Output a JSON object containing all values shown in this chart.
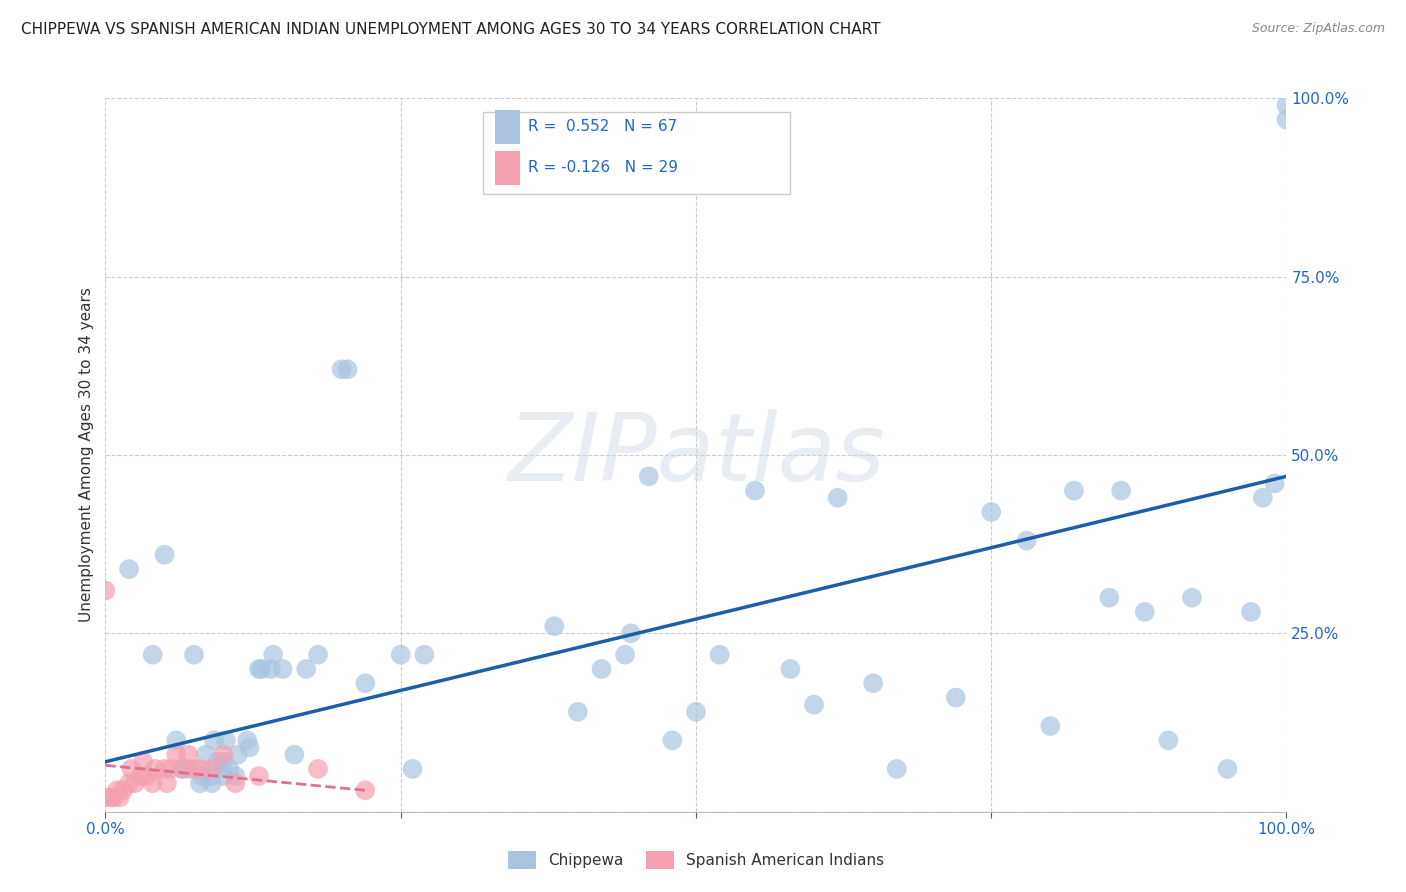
{
  "title": "CHIPPEWA VS SPANISH AMERICAN INDIAN UNEMPLOYMENT AMONG AGES 30 TO 34 YEARS CORRELATION CHART",
  "source": "Source: ZipAtlas.com",
  "ylabel": "Unemployment Among Ages 30 to 34 years",
  "xlim": [
    0.0,
    1.0
  ],
  "ylim": [
    0.0,
    1.0
  ],
  "xticks": [
    0.0,
    0.25,
    0.5,
    0.75,
    1.0
  ],
  "yticks": [
    0.0,
    0.25,
    0.5,
    0.75,
    1.0
  ],
  "xticklabels": [
    "0.0%",
    "",
    "",
    "",
    "100.0%"
  ],
  "yticklabels": [
    "",
    "25.0%",
    "50.0%",
    "75.0%",
    "100.0%"
  ],
  "chippewa_R": 0.552,
  "chippewa_N": 67,
  "spanish_R": -0.126,
  "spanish_N": 29,
  "chippewa_color": "#a8c4e0",
  "chippewa_line_color": "#1a5fa8",
  "spanish_color": "#f4a0b0",
  "spanish_line_color": "#e07090",
  "background_color": "#ffffff",
  "watermark_text": "ZIPatlas",
  "chippewa_x": [
    0.02,
    0.04,
    0.05,
    0.06,
    0.065,
    0.07,
    0.075,
    0.08,
    0.082,
    0.085,
    0.09,
    0.09,
    0.092,
    0.095,
    0.1,
    0.1,
    0.102,
    0.105,
    0.11,
    0.112,
    0.12,
    0.122,
    0.13,
    0.132,
    0.14,
    0.142,
    0.15,
    0.16,
    0.17,
    0.18,
    0.2,
    0.205,
    0.22,
    0.25,
    0.26,
    0.27,
    0.38,
    0.4,
    0.42,
    0.44,
    0.445,
    0.46,
    0.48,
    0.5,
    0.52,
    0.55,
    0.58,
    0.6,
    0.62,
    0.65,
    0.67,
    0.72,
    0.75,
    0.78,
    0.8,
    0.82,
    0.85,
    0.86,
    0.88,
    0.9,
    0.92,
    0.95,
    0.97,
    0.98,
    0.99,
    1.0,
    1.0
  ],
  "chippewa_y": [
    0.34,
    0.22,
    0.36,
    0.1,
    0.06,
    0.06,
    0.22,
    0.04,
    0.05,
    0.08,
    0.04,
    0.05,
    0.1,
    0.07,
    0.05,
    0.07,
    0.1,
    0.06,
    0.05,
    0.08,
    0.1,
    0.09,
    0.2,
    0.2,
    0.2,
    0.22,
    0.2,
    0.08,
    0.2,
    0.22,
    0.62,
    0.62,
    0.18,
    0.22,
    0.06,
    0.22,
    0.26,
    0.14,
    0.2,
    0.22,
    0.25,
    0.47,
    0.1,
    0.14,
    0.22,
    0.45,
    0.2,
    0.15,
    0.44,
    0.18,
    0.06,
    0.16,
    0.42,
    0.38,
    0.12,
    0.45,
    0.3,
    0.45,
    0.28,
    0.1,
    0.3,
    0.06,
    0.28,
    0.44,
    0.46,
    0.97,
    0.99
  ],
  "spanish_x": [
    0.0,
    0.0,
    0.005,
    0.007,
    0.01,
    0.012,
    0.015,
    0.02,
    0.022,
    0.025,
    0.03,
    0.032,
    0.035,
    0.04,
    0.042,
    0.05,
    0.052,
    0.055,
    0.06,
    0.065,
    0.07,
    0.075,
    0.08,
    0.09,
    0.1,
    0.11,
    0.13,
    0.18,
    0.22
  ],
  "spanish_y": [
    0.31,
    0.02,
    0.02,
    0.02,
    0.03,
    0.02,
    0.03,
    0.04,
    0.06,
    0.04,
    0.05,
    0.07,
    0.05,
    0.04,
    0.06,
    0.06,
    0.04,
    0.06,
    0.08,
    0.06,
    0.08,
    0.06,
    0.06,
    0.06,
    0.08,
    0.04,
    0.05,
    0.06,
    0.03
  ],
  "chippewa_trendline_x": [
    0.0,
    1.0
  ],
  "chippewa_trendline_y": [
    0.07,
    0.47
  ],
  "spanish_trendline_x": [
    0.0,
    0.22
  ],
  "spanish_trendline_y": [
    0.065,
    0.03
  ]
}
